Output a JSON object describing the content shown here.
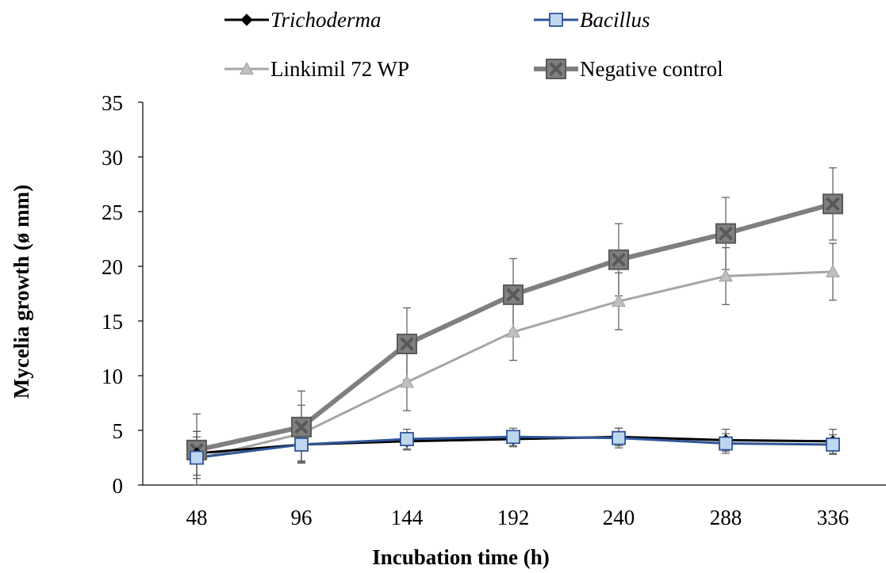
{
  "chart_data": {
    "type": "line",
    "xlabel": "Incubation time (h)",
    "ylabel": "Mycelia growth (ø mm)",
    "categories": [
      "48",
      "96",
      "144",
      "192",
      "240",
      "288",
      "336"
    ],
    "ylim": [
      0,
      35
    ],
    "yticks": [
      "0",
      "5",
      "10",
      "15",
      "20",
      "25",
      "30",
      "35"
    ],
    "grid": false,
    "legend_position": "top",
    "series": [
      {
        "name": "Trichoderma",
        "italic": true,
        "color": "#000000",
        "marker": "diamond",
        "values": [
          2.9,
          3.7,
          4.0,
          4.2,
          4.4,
          4.1,
          4.0
        ],
        "errors": [
          2.0,
          1.5,
          0.8,
          0.7,
          0.8,
          1.0,
          1.1
        ]
      },
      {
        "name": "Bacillus",
        "italic": true,
        "color": "#2F5597",
        "marker_fill": "#BDD7EE",
        "marker": "square",
        "values": [
          2.5,
          3.7,
          4.2,
          4.4,
          4.3,
          3.8,
          3.7
        ],
        "errors": [
          1.9,
          1.6,
          0.9,
          0.8,
          0.9,
          0.9,
          0.9
        ]
      },
      {
        "name": "Linkimil 72 WP",
        "italic": false,
        "color": "#A6A6A6",
        "marker": "triangle",
        "values": [
          2.4,
          4.7,
          9.4,
          14.0,
          16.8,
          19.1,
          19.5
        ],
        "errors": [
          2.5,
          2.6,
          2.6,
          2.6,
          2.6,
          2.6,
          2.6
        ]
      },
      {
        "name": "Negative control",
        "italic": false,
        "color": "#7F7F7F",
        "marker": "x-square",
        "values": [
          3.2,
          5.3,
          12.9,
          17.4,
          20.6,
          23.0,
          25.7
        ],
        "errors": [
          3.3,
          3.3,
          3.3,
          3.3,
          3.3,
          3.3,
          3.3
        ]
      }
    ]
  }
}
